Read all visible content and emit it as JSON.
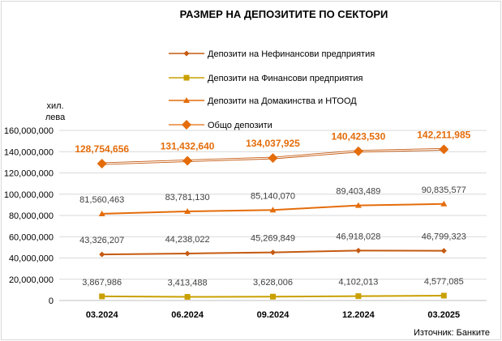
{
  "chart_data": {
    "type": "line",
    "title": "РАЗМЕР НА ДЕПОЗИТИТЕ ПО СЕКТОРИ",
    "ylabel_line1": "хил.",
    "ylabel_line2": "лева",
    "source": "Източник: Банките",
    "categories": [
      "03.2024",
      "06.2024",
      "09.2024",
      "12.2024",
      "03.2025"
    ],
    "y_ticks": [
      "0",
      "20,000,000",
      "40,000,000",
      "60,000,000",
      "80,000,000",
      "100,000,000",
      "120,000,000",
      "140,000,000",
      "160,000,000"
    ],
    "ylim": [
      0,
      160000000
    ],
    "grid": true,
    "legend_position": "top-center",
    "series": [
      {
        "name": "Депозити на Нефинансови предприятия",
        "marker": "diamond",
        "color": "#c55a11",
        "values": [
          43326207,
          44238022,
          45269849,
          46918028,
          46799323
        ],
        "labels": [
          "43,326,207",
          "44,238,022",
          "45,269,849",
          "46,918,028",
          "46,799,323"
        ]
      },
      {
        "name": "Депозити на Финансови предприятия",
        "marker": "square",
        "color": "#c9a000",
        "values": [
          3867986,
          3413488,
          3628006,
          4102013,
          4577085
        ],
        "labels": [
          "3,867,986",
          "3,413,488",
          "3,628,006",
          "4,102,013",
          "4,577,085"
        ]
      },
      {
        "name": "Депозити на Домакинства и НТООД",
        "marker": "triangle",
        "color": "#e46c0a",
        "values": [
          81560463,
          83781130,
          85140070,
          89403489,
          90835577
        ],
        "labels": [
          "81,560,463",
          "83,781,130",
          "85,140,070",
          "89,403,489",
          "90,835,577"
        ]
      },
      {
        "name": "Общо депозити",
        "marker": "big-diamond",
        "color": "#e46c0a",
        "bold_labels": true,
        "values": [
          128754656,
          131432640,
          134037925,
          140423530,
          142211985
        ],
        "labels": [
          "128,754,656",
          "131,432,640",
          "134,037,925",
          "140,423,530",
          "142,211,985"
        ]
      }
    ]
  }
}
